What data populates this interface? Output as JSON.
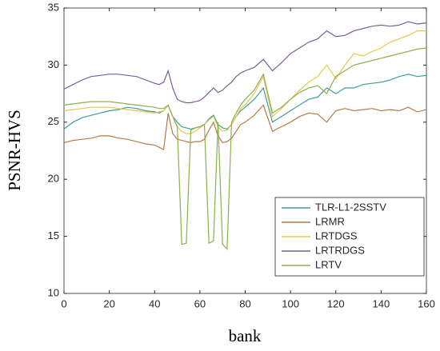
{
  "chart_data": {
    "type": "line",
    "xlabel": "bank",
    "ylabel": "PSNR-HVS",
    "xlim": [
      0,
      160
    ],
    "ylim": [
      10,
      35
    ],
    "xticks": [
      0,
      20,
      40,
      60,
      80,
      100,
      120,
      140,
      160
    ],
    "yticks": [
      10,
      15,
      20,
      25,
      30,
      35
    ],
    "legend": "lower right",
    "x": [
      0,
      4,
      8,
      12,
      16,
      20,
      24,
      28,
      32,
      36,
      40,
      42,
      44,
      46,
      48,
      50,
      52,
      54,
      56,
      58,
      60,
      62,
      64,
      66,
      68,
      70,
      72,
      74,
      76,
      78,
      80,
      84,
      88,
      92,
      96,
      100,
      104,
      108,
      112,
      116,
      120,
      124,
      128,
      132,
      136,
      140,
      144,
      148,
      152,
      156,
      160
    ],
    "series": [
      {
        "name": "TLR-L1-2SSTV",
        "color": "#3f9c9c",
        "values": [
          24.4,
          25,
          25.4,
          25.6,
          25.8,
          26,
          26.1,
          26.3,
          26.2,
          26,
          25.9,
          25.8,
          26,
          26.5,
          25.5,
          25,
          24.6,
          24.5,
          24.4,
          24.5,
          24.6,
          24.8,
          25.3,
          25.6,
          24.8,
          24.5,
          24.4,
          24.8,
          25.5,
          26,
          26.3,
          27,
          28,
          25,
          25.5,
          26,
          26.5,
          27,
          27.2,
          28,
          27.5,
          28,
          28,
          28.3,
          28.4,
          28.5,
          28.7,
          29,
          29.2,
          29,
          29.1
        ]
      },
      {
        "name": "LRMR",
        "color": "#b97a45",
        "values": [
          23.2,
          23.4,
          23.5,
          23.6,
          23.8,
          23.8,
          23.6,
          23.5,
          23.3,
          23.1,
          23,
          22.8,
          22.6,
          25.8,
          24,
          23.5,
          23.4,
          23.3,
          23.2,
          23.3,
          23.3,
          23.5,
          24.3,
          25,
          23.8,
          23.2,
          23.3,
          23.6,
          24.2,
          24.8,
          25,
          25.6,
          26.5,
          24.2,
          24.6,
          25,
          25.5,
          25.8,
          25.7,
          25,
          26,
          26.2,
          26,
          26.1,
          26.2,
          26,
          26.1,
          26,
          26.3,
          25.9,
          26.1
        ]
      },
      {
        "name": "LRTDGS",
        "color": "#e3c94e",
        "values": [
          26,
          26.1,
          26.2,
          26.3,
          26.3,
          26.3,
          26.2,
          26.1,
          26,
          25.9,
          25.8,
          25.9,
          26,
          26.5,
          25.5,
          24.6,
          24.2,
          24,
          24,
          24.2,
          24.5,
          24.8,
          25.2,
          25.5,
          24.6,
          24.2,
          24.3,
          24.8,
          25.5,
          26.2,
          26.5,
          27.5,
          29,
          25.5,
          26.2,
          27,
          27.8,
          28.5,
          29,
          30,
          28.8,
          30,
          31,
          30.8,
          31.2,
          31.5,
          32,
          32.3,
          32.6,
          33,
          33
        ]
      },
      {
        "name": "LRTRDGS",
        "color": "#7d5d93",
        "values": [
          27.9,
          28.3,
          28.7,
          29,
          29.1,
          29.2,
          29.2,
          29.1,
          29,
          28.7,
          28.4,
          28.3,
          28.5,
          29.5,
          28,
          27,
          26.8,
          26.7,
          26.7,
          26.8,
          26.9,
          27.2,
          27.6,
          28,
          27.6,
          27.8,
          28.2,
          28.5,
          29,
          29.3,
          29.5,
          29.8,
          30.5,
          29.5,
          30.2,
          31,
          31.5,
          32,
          32.3,
          33,
          32.5,
          32.6,
          33,
          33.2,
          33.4,
          33.5,
          33.4,
          33.5,
          33.8,
          33.6,
          33.7
        ]
      },
      {
        "name": "LRTV",
        "color": "#8bb04c",
        "values": [
          26.5,
          26.6,
          26.7,
          26.8,
          26.8,
          26.8,
          26.7,
          26.6,
          26.5,
          26.4,
          26.3,
          26.2,
          26.2,
          26.5,
          25.5,
          24.6,
          14.3,
          14.4,
          24.3,
          24.5,
          24.6,
          24.8,
          14.4,
          14.6,
          25,
          14.3,
          13.9,
          25,
          25.8,
          26.5,
          27,
          27.8,
          29.2,
          25.8,
          26.3,
          27,
          27.6,
          28,
          28.2,
          27.5,
          29,
          29.5,
          30,
          30.2,
          30.4,
          30.6,
          30.8,
          31,
          31.2,
          31.4,
          31.5
        ]
      }
    ]
  }
}
